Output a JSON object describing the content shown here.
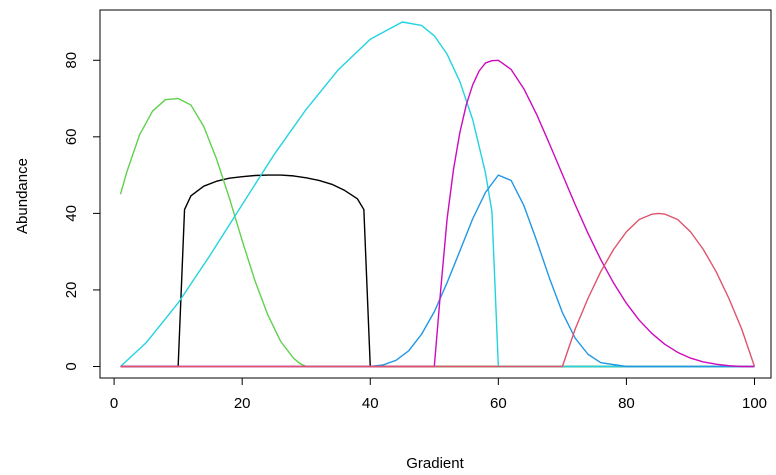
{
  "chart_data": {
    "type": "line",
    "title": "",
    "xlabel": "Gradient",
    "ylabel": "Abundance",
    "xlim": [
      1,
      100
    ],
    "ylim": [
      0,
      90
    ],
    "x_ticks": [
      0,
      20,
      40,
      60,
      80,
      100
    ],
    "y_ticks": [
      0,
      20,
      40,
      60,
      80
    ],
    "x_tick_labels": [
      "0",
      "20",
      "40",
      "60",
      "80",
      "100"
    ],
    "y_tick_labels": [
      "0",
      "20",
      "40",
      "60",
      "80"
    ],
    "grid": false,
    "legend": "none",
    "series": [
      {
        "color": "#000000",
        "x": [
          1,
          9,
          10,
          11,
          12,
          14,
          16,
          18,
          20,
          22,
          24,
          25,
          26,
          28,
          30,
          32,
          34,
          36,
          38,
          39,
          40,
          41,
          100
        ],
        "values": [
          0,
          0,
          0,
          41,
          44.6,
          47.1,
          48.4,
          49.2,
          49.6,
          49.9,
          50,
          50,
          50,
          49.8,
          49.3,
          48.6,
          47.6,
          46,
          43.8,
          41,
          0,
          0,
          0
        ]
      },
      {
        "color": "#61D04F",
        "x": [
          1,
          2,
          4,
          6,
          8,
          10,
          12,
          14,
          16,
          18,
          20,
          22,
          24,
          26,
          28,
          29,
          30,
          100
        ],
        "values": [
          45,
          50.9,
          60.6,
          66.7,
          69.7,
          70,
          68.3,
          62.7,
          54.2,
          44,
          32.9,
          22.4,
          13.5,
          6.6,
          2.2,
          0.8,
          0,
          0
        ]
      },
      {
        "color": "#22D3E0",
        "x": [
          1,
          5,
          10,
          15,
          20,
          25,
          30,
          35,
          40,
          45,
          48,
          50,
          52,
          54,
          56,
          58,
          59,
          60,
          100
        ],
        "values": [
          0,
          6.2,
          16.6,
          29.1,
          42.3,
          55.4,
          67.2,
          77.5,
          85.5,
          90,
          89.1,
          86.4,
          81.6,
          74.4,
          64.5,
          50.5,
          40.5,
          0,
          0
        ]
      },
      {
        "color": "#2297E6",
        "x": [
          1,
          40,
          42,
          44,
          46,
          48,
          50,
          52,
          54,
          56,
          58,
          60,
          62,
          64,
          66,
          68,
          70,
          72,
          74,
          76,
          80,
          100
        ],
        "values": [
          0,
          0,
          0.4,
          1.6,
          4.1,
          8.4,
          14.3,
          21.9,
          30.2,
          38.6,
          45.5,
          50,
          48.6,
          42,
          32.8,
          23,
          14.1,
          7.4,
          3.2,
          1,
          0,
          0
        ]
      },
      {
        "color": "#CD0BBC",
        "x": [
          1,
          50,
          51,
          52,
          53,
          54,
          55,
          56,
          57,
          58,
          59,
          60,
          62,
          64,
          66,
          68,
          70,
          72,
          74,
          76,
          78,
          80,
          82,
          84,
          86,
          88,
          90,
          92,
          94,
          96,
          98,
          100
        ],
        "values": [
          0,
          0,
          20,
          38.6,
          51.5,
          61.2,
          68.4,
          73.6,
          77.2,
          79.3,
          79.9,
          80,
          77.6,
          72.5,
          65.8,
          58.1,
          50.2,
          42.3,
          34.8,
          27.9,
          21.8,
          16.5,
          12.1,
          8.6,
          5.8,
          3.7,
          2.2,
          1.2,
          0.6,
          0.2,
          0,
          0
        ]
      },
      {
        "color": "#DF536B",
        "x": [
          1,
          70,
          72,
          74,
          76,
          78,
          80,
          82,
          84,
          85,
          86,
          88,
          90,
          92,
          94,
          96,
          98,
          100
        ],
        "values": [
          0,
          0,
          9.8,
          17.8,
          24.8,
          30.6,
          35.2,
          38.4,
          39.8,
          40,
          39.8,
          38.4,
          35.2,
          30.6,
          24.8,
          17.8,
          9.8,
          0
        ]
      }
    ]
  }
}
